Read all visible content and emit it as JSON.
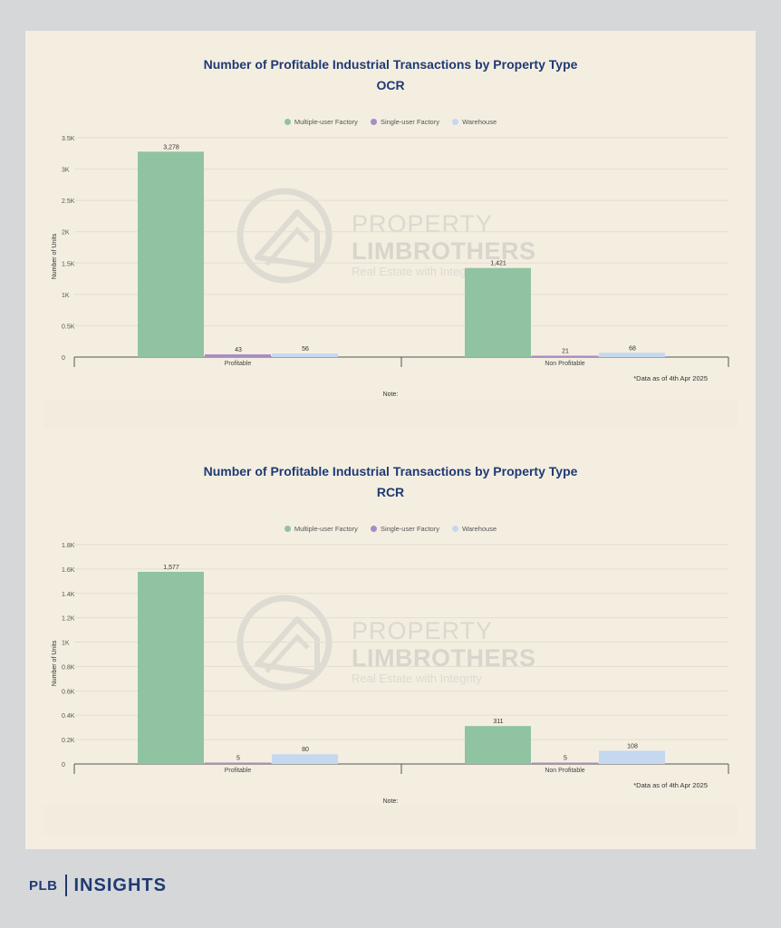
{
  "footer": {
    "brand_left": "PLB",
    "brand_right": "INSIGHTS"
  },
  "watermark": {
    "line1": "PROPERTY",
    "line2": "LIMBROTHERS",
    "line3": "Real Estate with Integrity"
  },
  "colors": {
    "multiple_user_factory": "#8fc3a2",
    "single_user_factory": "#a98bc4",
    "warehouse": "#c4d8f0",
    "title": "#1f3a73"
  },
  "chart_data": [
    {
      "type": "bar",
      "title": "Number of Profitable Industrial Transactions by Property Type",
      "subtitle": "OCR",
      "ylabel": "Number of Units",
      "xlabel": "",
      "categories": [
        "Profitable",
        "Non Profitable"
      ],
      "series": [
        {
          "name": "Multiple-user Factory",
          "values": [
            3278,
            1421
          ],
          "labels": [
            "3,278",
            "1,421"
          ]
        },
        {
          "name": "Single-user Factory",
          "values": [
            43,
            21
          ],
          "labels": [
            "43",
            "21"
          ]
        },
        {
          "name": "Warehouse",
          "values": [
            56,
            68
          ],
          "labels": [
            "56",
            "68"
          ]
        }
      ],
      "ylim": [
        0,
        3500
      ],
      "yticks": [
        0,
        500,
        1000,
        1500,
        2000,
        2500,
        3000,
        3500
      ],
      "yticklabels": [
        "0",
        "0.5K",
        "1K",
        "1.5K",
        "2K",
        "2.5K",
        "3K",
        "3.5K"
      ],
      "grid": true,
      "legend": "top-center",
      "annotation": "*Data as of 4th Apr 2025",
      "note": "Note:"
    },
    {
      "type": "bar",
      "title": "Number of Profitable Industrial Transactions by Property Type",
      "subtitle": "RCR",
      "ylabel": "Number of Units",
      "xlabel": "",
      "categories": [
        "Profitable",
        "Non Profitable"
      ],
      "series": [
        {
          "name": "Multiple-user Factory",
          "values": [
            1577,
            311
          ],
          "labels": [
            "1,577",
            "311"
          ]
        },
        {
          "name": "Single-user Factory",
          "values": [
            5,
            5
          ],
          "labels": [
            "5",
            "5"
          ]
        },
        {
          "name": "Warehouse",
          "values": [
            80,
            108
          ],
          "labels": [
            "80",
            "108"
          ]
        }
      ],
      "ylim": [
        0,
        1800
      ],
      "yticks": [
        0,
        200,
        400,
        600,
        800,
        1000,
        1200,
        1400,
        1600,
        1800
      ],
      "yticklabels": [
        "0",
        "0.2K",
        "0.4K",
        "0.6K",
        "0.8K",
        "1K",
        "1.2K",
        "1.4K",
        "1.6K",
        "1.8K"
      ],
      "grid": true,
      "legend": "top-center",
      "annotation": "*Data as of 4th Apr 2025",
      "note": "Note:"
    }
  ]
}
